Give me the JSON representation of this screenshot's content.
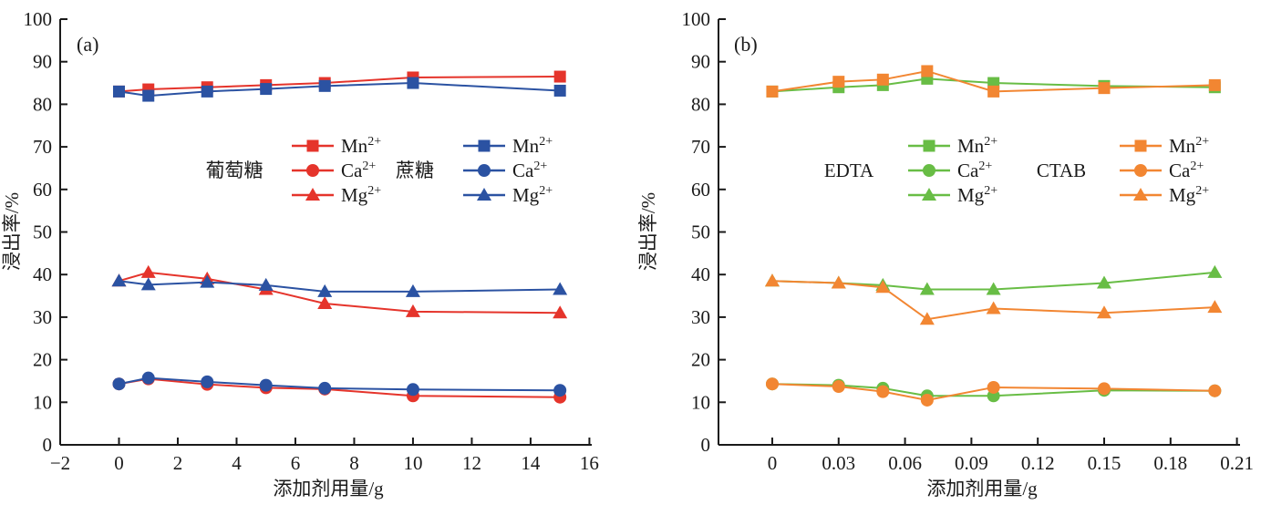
{
  "figure_title": "",
  "chart_data": [
    {
      "type": "line",
      "panel_label": "(a)",
      "xlabel": "添加剂用量/g",
      "ylabel": "浸出率/%",
      "xlim": [
        -2,
        16.08
      ],
      "ylim": [
        0,
        100
      ],
      "xticks": [
        -2,
        0,
        2,
        4,
        6,
        8,
        10,
        12,
        14,
        16
      ],
      "xtick_labels": [
        "−2",
        "0",
        "2",
        "4",
        "6",
        "8",
        "10",
        "12",
        "14",
        "16"
      ],
      "yticks": [
        0,
        10,
        20,
        30,
        40,
        50,
        60,
        70,
        80,
        90,
        100
      ],
      "ytick_labels": [
        "0",
        "10",
        "20",
        "30",
        "40",
        "50",
        "60",
        "70",
        "80",
        "90",
        "100"
      ],
      "x": [
        0,
        1,
        3,
        5,
        7,
        10,
        15
      ],
      "legend_groups": [
        {
          "label": "葡萄糖",
          "color": "#e5342b"
        },
        {
          "label": "蔗糖",
          "color": "#2b52a2"
        }
      ],
      "series": [
        {
          "group": 0,
          "name": "Mn2+",
          "base": "Mn",
          "sup": "2+",
          "marker": "square",
          "color": "#e5342b",
          "values": [
            83,
            83.5,
            84,
            84.5,
            85,
            86.3,
            86.5
          ]
        },
        {
          "group": 0,
          "name": "Ca2+",
          "base": "Ca",
          "sup": "2+",
          "marker": "circle",
          "color": "#e5342b",
          "values": [
            14.3,
            15.5,
            14.2,
            13.4,
            13.1,
            11.5,
            11.2
          ]
        },
        {
          "group": 0,
          "name": "Mg2+",
          "base": "Mg",
          "sup": "2+",
          "marker": "triangle",
          "color": "#e5342b",
          "values": [
            38.5,
            40.5,
            39,
            36.5,
            33.2,
            31.3,
            31
          ]
        },
        {
          "group": 1,
          "name": "Mn2+",
          "base": "Mn",
          "sup": "2+",
          "marker": "square",
          "color": "#2b52a2",
          "values": [
            83,
            82,
            83,
            83.6,
            84.3,
            85,
            83.2
          ]
        },
        {
          "group": 1,
          "name": "Ca2+",
          "base": "Ca",
          "sup": "2+",
          "marker": "circle",
          "color": "#2b52a2",
          "values": [
            14.3,
            15.7,
            14.8,
            14,
            13.3,
            13,
            12.8
          ]
        },
        {
          "group": 1,
          "name": "Mg2+",
          "base": "Mg",
          "sup": "2+",
          "marker": "triangle",
          "color": "#2b52a2",
          "values": [
            38.5,
            37.6,
            38.2,
            37.5,
            36,
            36,
            36.5
          ]
        }
      ]
    },
    {
      "type": "line",
      "panel_label": "(b)",
      "xlabel": "添加剂用量/g",
      "ylabel": "浸出率/%",
      "xlim": [
        -0.0243,
        0.2114
      ],
      "ylim": [
        0,
        100
      ],
      "xticks": [
        0,
        0.03,
        0.06,
        0.09,
        0.12,
        0.15,
        0.18,
        0.21
      ],
      "xtick_labels": [
        "0",
        "0.03",
        "0.06",
        "0.09",
        "0.12",
        "0.15",
        "0.18",
        "0.21"
      ],
      "yticks": [
        0,
        10,
        20,
        30,
        40,
        50,
        60,
        70,
        80,
        90,
        100
      ],
      "ytick_labels": [
        "0",
        "10",
        "20",
        "30",
        "40",
        "50",
        "60",
        "70",
        "80",
        "90",
        "100"
      ],
      "x": [
        0,
        0.03,
        0.05,
        0.07,
        0.1,
        0.15,
        0.2
      ],
      "legend_groups": [
        {
          "label": "EDTA",
          "color": "#68bd45"
        },
        {
          "label": "CTAB",
          "color": "#f28632"
        }
      ],
      "series": [
        {
          "group": 0,
          "name": "Mn2+",
          "base": "Mn",
          "sup": "2+",
          "marker": "square",
          "color": "#68bd45",
          "values": [
            83,
            84,
            84.5,
            86,
            85,
            84.3,
            84
          ]
        },
        {
          "group": 0,
          "name": "Ca2+",
          "base": "Ca",
          "sup": "2+",
          "marker": "circle",
          "color": "#68bd45",
          "values": [
            14.3,
            14,
            13.3,
            11.5,
            11.5,
            12.8,
            12.7
          ]
        },
        {
          "group": 0,
          "name": "Mg2+",
          "base": "Mg",
          "sup": "2+",
          "marker": "triangle",
          "color": "#68bd45",
          "values": [
            38.5,
            38,
            37.5,
            36.5,
            36.5,
            38,
            40.5
          ]
        },
        {
          "group": 1,
          "name": "Mn2+",
          "base": "Mn",
          "sup": "2+",
          "marker": "square",
          "color": "#f28632",
          "values": [
            83,
            85.3,
            85.8,
            87.8,
            83,
            83.8,
            84.5
          ]
        },
        {
          "group": 1,
          "name": "Ca2+",
          "base": "Ca",
          "sup": "2+",
          "marker": "circle",
          "color": "#f28632",
          "values": [
            14.3,
            13.7,
            12.5,
            10.5,
            13.5,
            13.2,
            12.7
          ]
        },
        {
          "group": 1,
          "name": "Mg2+",
          "base": "Mg",
          "sup": "2+",
          "marker": "triangle",
          "color": "#f28632",
          "values": [
            38.5,
            38,
            37,
            29.5,
            32,
            31,
            32.3
          ]
        }
      ]
    }
  ]
}
